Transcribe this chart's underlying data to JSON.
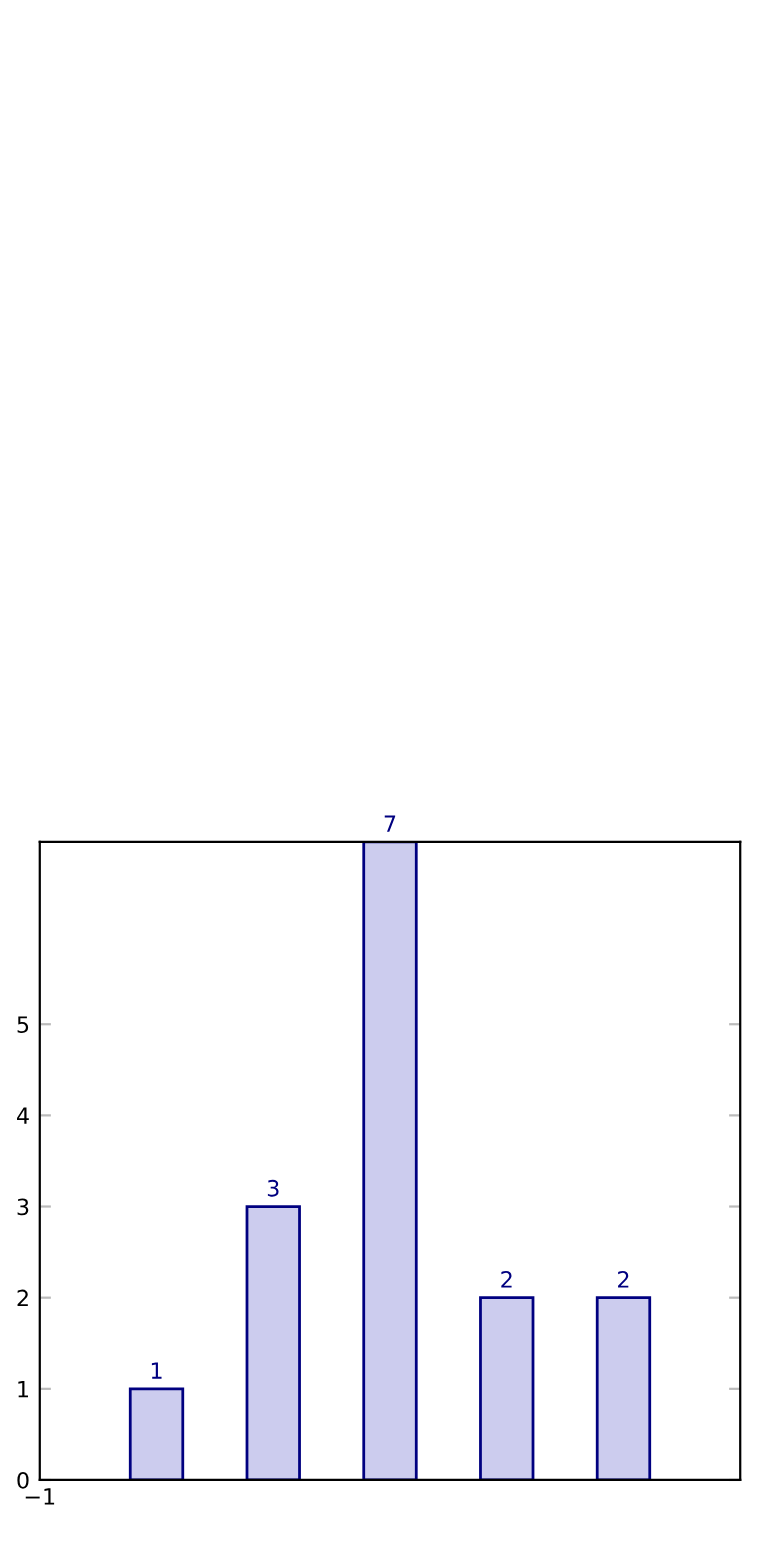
{
  "chart_data": {
    "type": "bar",
    "categories": [
      null,
      null,
      null,
      null,
      null
    ],
    "values": [
      1,
      3,
      7,
      2,
      2
    ],
    "color": "#ccccee",
    "ylim": [
      0,
      7
    ],
    "yticks": [
      0,
      1,
      2,
      3,
      4,
      5
    ],
    "annotations": [
      "−1"
    ],
    "data_labels": true
  }
}
